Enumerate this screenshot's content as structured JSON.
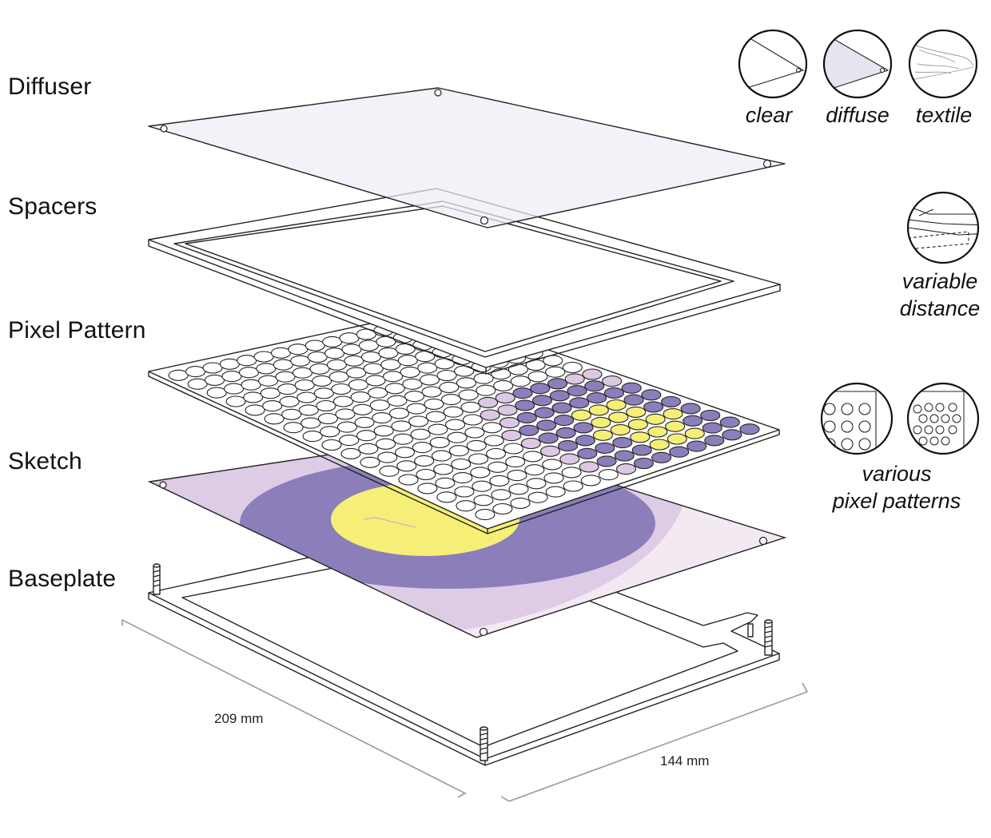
{
  "layers": {
    "diffuser": "Diffuser",
    "spacers": "Spacers",
    "pixel_pattern": "Pixel Pattern",
    "sketch": "Sketch",
    "baseplate": "Baseplate"
  },
  "diffuser_options": {
    "clear": "clear",
    "diffuse": "diffuse",
    "textile": "textile"
  },
  "spacer_option": {
    "line1": "variable",
    "line2": "distance"
  },
  "pattern_option": {
    "line1": "various",
    "line2": "pixel patterns"
  },
  "dimensions": {
    "length": "209 mm",
    "width": "144 mm"
  },
  "colors": {
    "outer_pink": "#dcc8e3",
    "purple": "#8c7ebb",
    "yellow": "#f5ef78",
    "diffuser_tint": "#eeedf5"
  },
  "icons": [
    "clear-diffuser-icon",
    "diffuse-diffuser-icon",
    "textile-diffuser-icon",
    "variable-distance-icon",
    "large-pixel-pattern-icon",
    "small-pixel-pattern-icon"
  ]
}
